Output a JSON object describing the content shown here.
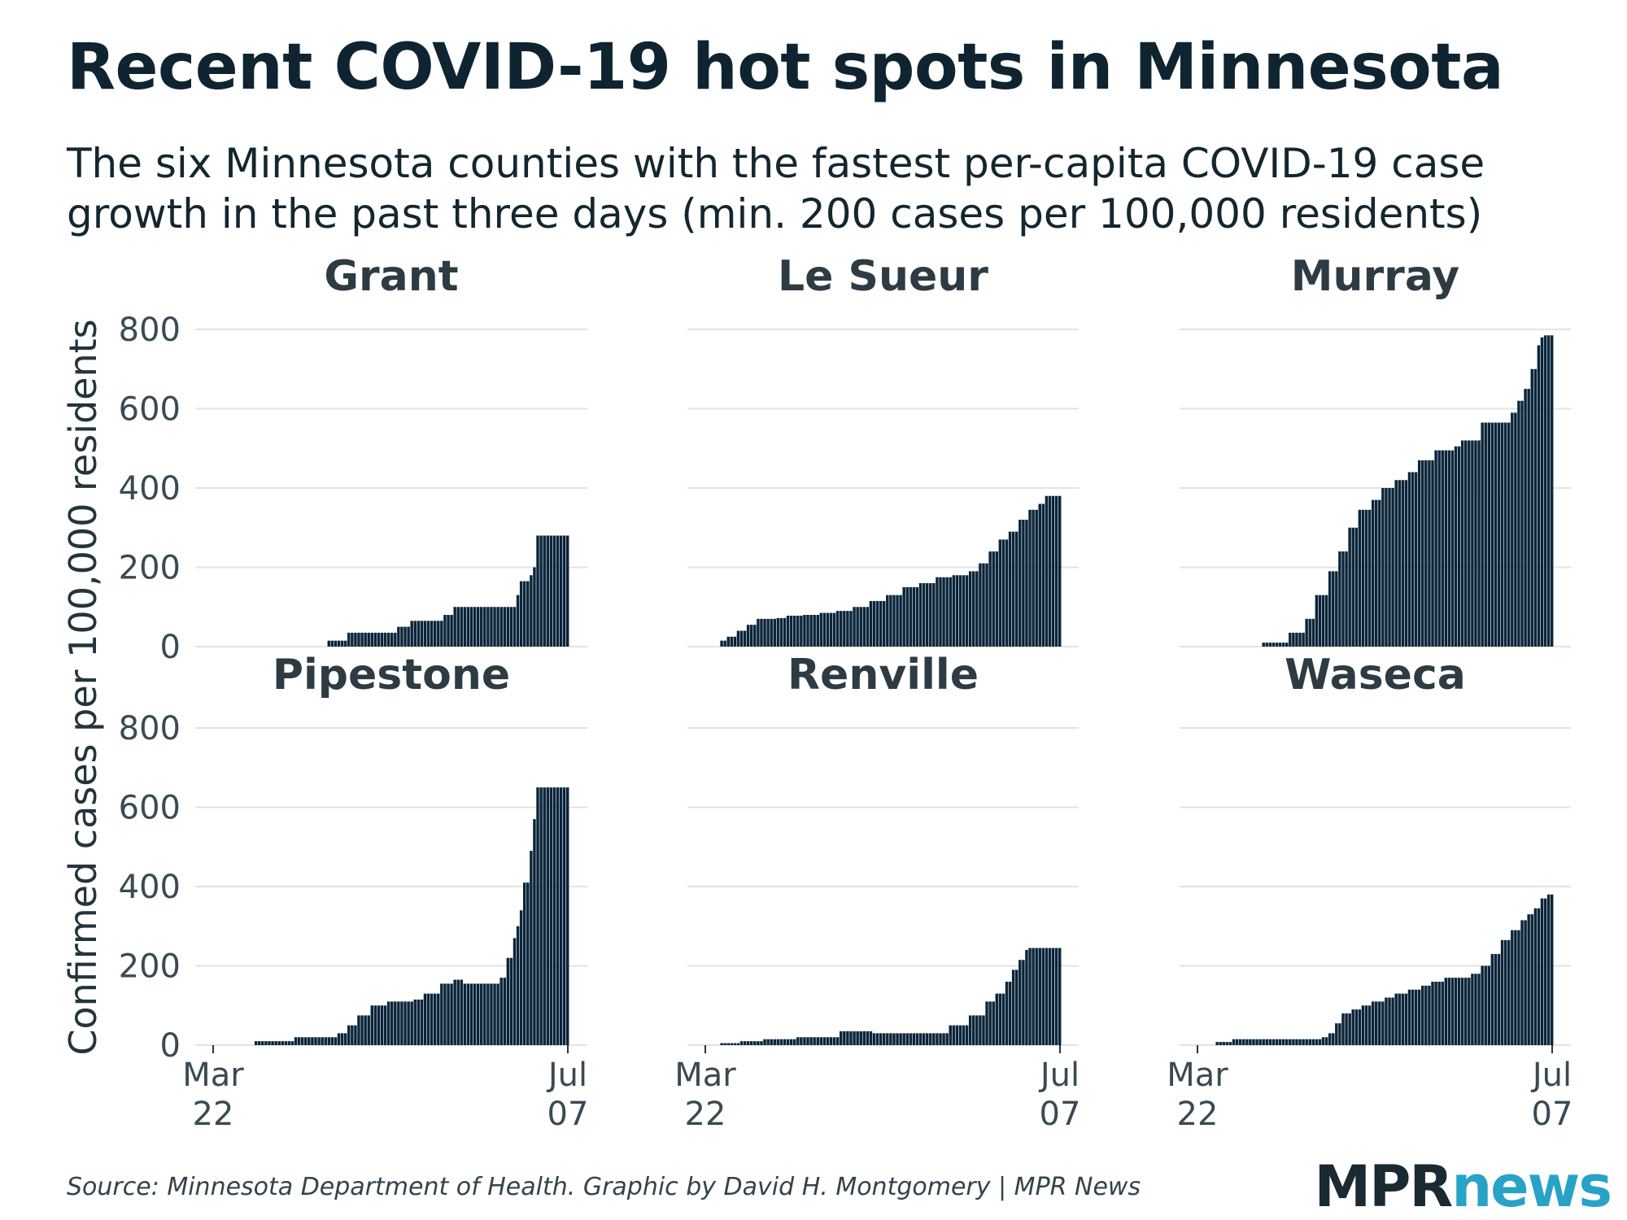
{
  "title": "Recent COVID-19 hot spots in Minnesota",
  "subtitle": "The six Minnesota counties with the fastest per-capita COVID-19 case growth in the past three days (min. 200 cases per 100,000 residents)",
  "source": "Source: Minnesota Department of Health. Graphic by David H. Montgomery | MPR News",
  "logo": {
    "mpr": "MPR",
    "news": "news"
  },
  "colors": {
    "bar": "#0b253a",
    "grid": "#e3e3e3",
    "text": "#0f2430",
    "logo_news": "#28a3c7"
  },
  "chart_data": {
    "type": "bar",
    "title": "Recent COVID-19 hot spots in Minnesota",
    "ylabel": "Confirmed cases per 100,000 residents",
    "xlabel": "",
    "ylim": [
      0,
      800
    ],
    "yticks": [
      "0",
      "200",
      "400",
      "600",
      "800"
    ],
    "x_range": [
      "Mar 22",
      "Jul 07"
    ],
    "xticks": [
      {
        "month": "Mar",
        "day": "22"
      },
      {
        "month": "Jul",
        "day": "07"
      }
    ],
    "series": [
      {
        "name": "Grant",
        "points": [
          [
            35,
            0
          ],
          [
            35,
            15
          ],
          [
            41,
            15
          ],
          [
            41,
            35
          ],
          [
            54,
            35
          ],
          [
            55,
            35
          ],
          [
            56,
            50
          ],
          [
            59,
            50
          ],
          [
            60,
            65
          ],
          [
            69,
            65
          ],
          [
            70,
            80
          ],
          [
            72,
            80
          ],
          [
            73,
            100
          ],
          [
            86,
            100
          ],
          [
            91,
            100
          ],
          [
            92,
            130
          ],
          [
            93,
            165
          ],
          [
            95,
            165
          ],
          [
            96,
            180
          ],
          [
            97,
            200
          ],
          [
            98,
            280
          ],
          [
            107,
            280
          ]
        ]
      },
      {
        "name": "Le Sueur",
        "points": [
          [
            0,
            0
          ],
          [
            4,
            0
          ],
          [
            5,
            15
          ],
          [
            7,
            25
          ],
          [
            10,
            40
          ],
          [
            13,
            55
          ],
          [
            16,
            70
          ],
          [
            22,
            72
          ],
          [
            25,
            78
          ],
          [
            30,
            80
          ],
          [
            35,
            85
          ],
          [
            40,
            90
          ],
          [
            45,
            100
          ],
          [
            50,
            115
          ],
          [
            55,
            130
          ],
          [
            60,
            150
          ],
          [
            65,
            160
          ],
          [
            70,
            175
          ],
          [
            75,
            180
          ],
          [
            80,
            190
          ],
          [
            83,
            210
          ],
          [
            86,
            240
          ],
          [
            89,
            270
          ],
          [
            92,
            290
          ],
          [
            95,
            320
          ],
          [
            98,
            345
          ],
          [
            101,
            360
          ],
          [
            103,
            380
          ],
          [
            107,
            380
          ]
        ]
      },
      {
        "name": "Murray",
        "points": [
          [
            20,
            0
          ],
          [
            20,
            10
          ],
          [
            27,
            10
          ],
          [
            28,
            35
          ],
          [
            32,
            35
          ],
          [
            33,
            70
          ],
          [
            36,
            130
          ],
          [
            40,
            190
          ],
          [
            43,
            240
          ],
          [
            46,
            300
          ],
          [
            49,
            345
          ],
          [
            53,
            370
          ],
          [
            56,
            400
          ],
          [
            60,
            420
          ],
          [
            64,
            440
          ],
          [
            67,
            470
          ],
          [
            71,
            470
          ],
          [
            72,
            495
          ],
          [
            76,
            495
          ],
          [
            78,
            505
          ],
          [
            80,
            520
          ],
          [
            85,
            520
          ],
          [
            86,
            565
          ],
          [
            93,
            565
          ],
          [
            95,
            590
          ],
          [
            97,
            620
          ],
          [
            99,
            650
          ],
          [
            101,
            700
          ],
          [
            103,
            760
          ],
          [
            104,
            780
          ],
          [
            105,
            785
          ],
          [
            107,
            785
          ]
        ]
      },
      {
        "name": "Pipestone",
        "points": [
          [
            13,
            0
          ],
          [
            13,
            10
          ],
          [
            24,
            10
          ],
          [
            25,
            20
          ],
          [
            37,
            20
          ],
          [
            38,
            30
          ],
          [
            41,
            50
          ],
          [
            44,
            75
          ],
          [
            48,
            100
          ],
          [
            53,
            110
          ],
          [
            61,
            115
          ],
          [
            64,
            130
          ],
          [
            69,
            155
          ],
          [
            73,
            165
          ],
          [
            76,
            155
          ],
          [
            84,
            155
          ],
          [
            87,
            170
          ],
          [
            89,
            220
          ],
          [
            91,
            270
          ],
          [
            92,
            300
          ],
          [
            93,
            340
          ],
          [
            94,
            410
          ],
          [
            95,
            410
          ],
          [
            96,
            490
          ],
          [
            97,
            570
          ],
          [
            98,
            650
          ],
          [
            107,
            650
          ]
        ]
      },
      {
        "name": "Renville",
        "points": [
          [
            4,
            0
          ],
          [
            5,
            5
          ],
          [
            10,
            5
          ],
          [
            11,
            10
          ],
          [
            17,
            10
          ],
          [
            18,
            15
          ],
          [
            27,
            15
          ],
          [
            28,
            20
          ],
          [
            40,
            20
          ],
          [
            41,
            35
          ],
          [
            50,
            35
          ],
          [
            51,
            30
          ],
          [
            73,
            30
          ],
          [
            74,
            50
          ],
          [
            79,
            50
          ],
          [
            80,
            75
          ],
          [
            84,
            75
          ],
          [
            85,
            110
          ],
          [
            88,
            130
          ],
          [
            91,
            160
          ],
          [
            93,
            190
          ],
          [
            95,
            215
          ],
          [
            97,
            240
          ],
          [
            98,
            245
          ],
          [
            107,
            245
          ]
        ]
      },
      {
        "name": "Waseca",
        "points": [
          [
            6,
            0
          ],
          [
            6,
            8
          ],
          [
            10,
            8
          ],
          [
            11,
            15
          ],
          [
            35,
            15
          ],
          [
            38,
            20
          ],
          [
            40,
            30
          ],
          [
            42,
            55
          ],
          [
            44,
            80
          ],
          [
            47,
            90
          ],
          [
            50,
            100
          ],
          [
            53,
            110
          ],
          [
            57,
            120
          ],
          [
            60,
            130
          ],
          [
            64,
            140
          ],
          [
            68,
            150
          ],
          [
            71,
            160
          ],
          [
            75,
            170
          ],
          [
            79,
            170
          ],
          [
            83,
            180
          ],
          [
            86,
            200
          ],
          [
            89,
            230
          ],
          [
            92,
            265
          ],
          [
            95,
            290
          ],
          [
            98,
            315
          ],
          [
            100,
            330
          ],
          [
            102,
            345
          ],
          [
            104,
            370
          ],
          [
            106,
            380
          ],
          [
            107,
            380
          ]
        ]
      }
    ]
  }
}
